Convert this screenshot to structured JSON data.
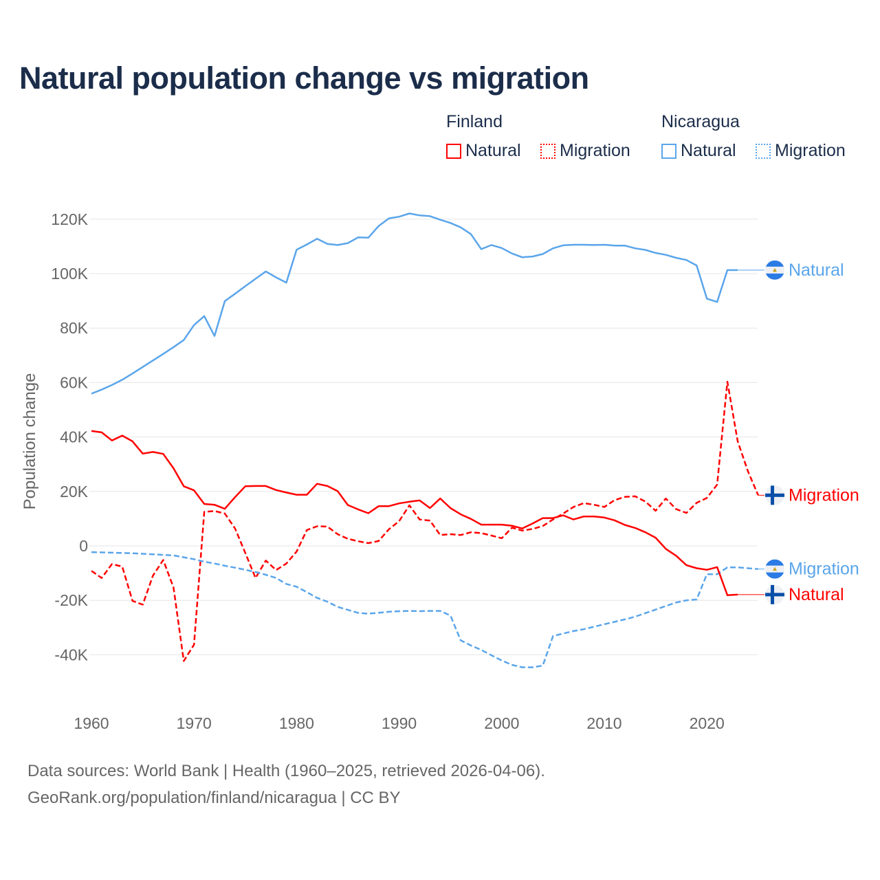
{
  "title": "Natural population change vs migration",
  "legend": {
    "groups": [
      {
        "name": "Finland",
        "color": "#ff0000",
        "items": [
          "Natural",
          "Migration"
        ]
      },
      {
        "name": "Nicaragua",
        "color": "#5aa5ea",
        "items": [
          "Natural",
          "Migration"
        ]
      }
    ]
  },
  "footer": {
    "line1": "Data sources: World Bank | Health (1960–2025, retrieved 2026-04-06).",
    "line2": "GeoRank.org/population/finland/nicaragua | CC BY"
  },
  "chart_data": {
    "type": "line",
    "title": "Natural population change vs migration",
    "xlabel": "",
    "ylabel": "Population change",
    "xlim": [
      1960,
      2025
    ],
    "ylim": [
      -55000,
      125000
    ],
    "xticks": [
      1960,
      1970,
      1980,
      1990,
      2000,
      2010,
      2020
    ],
    "xtick_labels": [
      "1960",
      "1970",
      "1980",
      "1990",
      "2000",
      "2010",
      "2020"
    ],
    "yticks": [
      -40000,
      -20000,
      0,
      20000,
      40000,
      60000,
      80000,
      100000,
      120000
    ],
    "ytick_labels": [
      "-40K",
      "-20K",
      "0",
      "20K",
      "40K",
      "60K",
      "80K",
      "100K",
      "120K"
    ],
    "grid": true,
    "legend_position": "top-right",
    "series": [
      {
        "name": "Nicaragua Natural",
        "country": "Nicaragua",
        "kind": "Natural",
        "label": "Natural",
        "color": "#5aa5ea",
        "dashed": false,
        "start_year": 1960,
        "values": [
          55900,
          57400,
          59100,
          61000,
          63300,
          65700,
          68100,
          70500,
          73000,
          75600,
          81100,
          84400,
          77100,
          89900,
          92600,
          95400,
          98100,
          100800,
          98600,
          96700,
          108800,
          110700,
          112800,
          110900,
          110500,
          111200,
          113300,
          113200,
          117500,
          120300,
          120900,
          122100,
          121400,
          121100,
          119800,
          118600,
          117000,
          114500,
          109000,
          110500,
          109400,
          107400,
          106000,
          106300,
          107200,
          109300,
          110400,
          110600,
          110600,
          110500,
          110600,
          110300,
          110300,
          109300,
          108700,
          107600,
          106900,
          105800,
          105000,
          103000,
          90800,
          89600,
          101300,
          101300
        ]
      },
      {
        "name": "Finland Migration",
        "country": "Finland",
        "kind": "Migration",
        "label": "Migration",
        "color": "#ff0000",
        "dashed": true,
        "start_year": 1960,
        "values": [
          -9200,
          -11800,
          -6700,
          -7600,
          -20200,
          -21600,
          -10900,
          -5200,
          -15300,
          -42300,
          -36300,
          12500,
          12800,
          11900,
          6400,
          -2600,
          -11800,
          -5400,
          -8900,
          -6500,
          -2100,
          5800,
          7200,
          7100,
          4300,
          2600,
          1700,
          1000,
          1800,
          6100,
          9100,
          14900,
          9700,
          9300,
          4000,
          4300,
          4000,
          5000,
          4700,
          3800,
          2800,
          6700,
          5600,
          6200,
          7300,
          9700,
          11900,
          14300,
          15700,
          15100,
          14300,
          16800,
          18000,
          18200,
          16300,
          12900,
          17400,
          13500,
          12100,
          15800,
          17600,
          22500,
          60300,
          38400,
          27400,
          18600
        ]
      },
      {
        "name": "Nicaragua Migration",
        "country": "Nicaragua",
        "kind": "Migration",
        "label": "Migration",
        "color": "#5aa5ea",
        "dashed": true,
        "start_year": 1960,
        "values": [
          -2300,
          -2400,
          -2500,
          -2600,
          -2700,
          -2900,
          -3100,
          -3300,
          -3500,
          -4200,
          -4900,
          -5800,
          -6500,
          -7300,
          -8000,
          -8800,
          -9600,
          -10600,
          -11800,
          -14000,
          -15000,
          -17000,
          -19100,
          -20500,
          -22400,
          -23500,
          -24600,
          -24900,
          -24600,
          -24200,
          -24000,
          -23900,
          -24000,
          -23900,
          -23900,
          -25600,
          -34700,
          -36600,
          -38200,
          -40200,
          -42100,
          -43700,
          -44600,
          -44600,
          -44000,
          -33100,
          -32200,
          -31300,
          -30600,
          -29700,
          -28800,
          -27900,
          -27000,
          -26000,
          -24700,
          -23400,
          -22100,
          -20800,
          -20000,
          -19700,
          -10400,
          -10400,
          -7900,
          -7900,
          -8200,
          -8500
        ]
      },
      {
        "name": "Finland Natural",
        "country": "Finland",
        "kind": "Natural",
        "label": "Natural",
        "color": "#ff0000",
        "dashed": false,
        "start_year": 1960,
        "values": [
          42200,
          41700,
          38700,
          40500,
          38400,
          33900,
          34500,
          33800,
          28500,
          21900,
          20400,
          15400,
          15100,
          13600,
          17900,
          21900,
          22000,
          22000,
          20500,
          19600,
          18800,
          18800,
          22800,
          22000,
          20100,
          15000,
          13400,
          12000,
          14600,
          14600,
          15600,
          16200,
          16700,
          13900,
          17400,
          13900,
          11600,
          9900,
          7800,
          7800,
          7800,
          7400,
          6400,
          8200,
          10200,
          10200,
          11200,
          9700,
          10800,
          10800,
          10400,
          9400,
          7700,
          6600,
          5000,
          3000,
          -1100,
          -3600,
          -7100,
          -8200,
          -8800,
          -7800,
          -18100,
          -17900
        ]
      }
    ]
  }
}
